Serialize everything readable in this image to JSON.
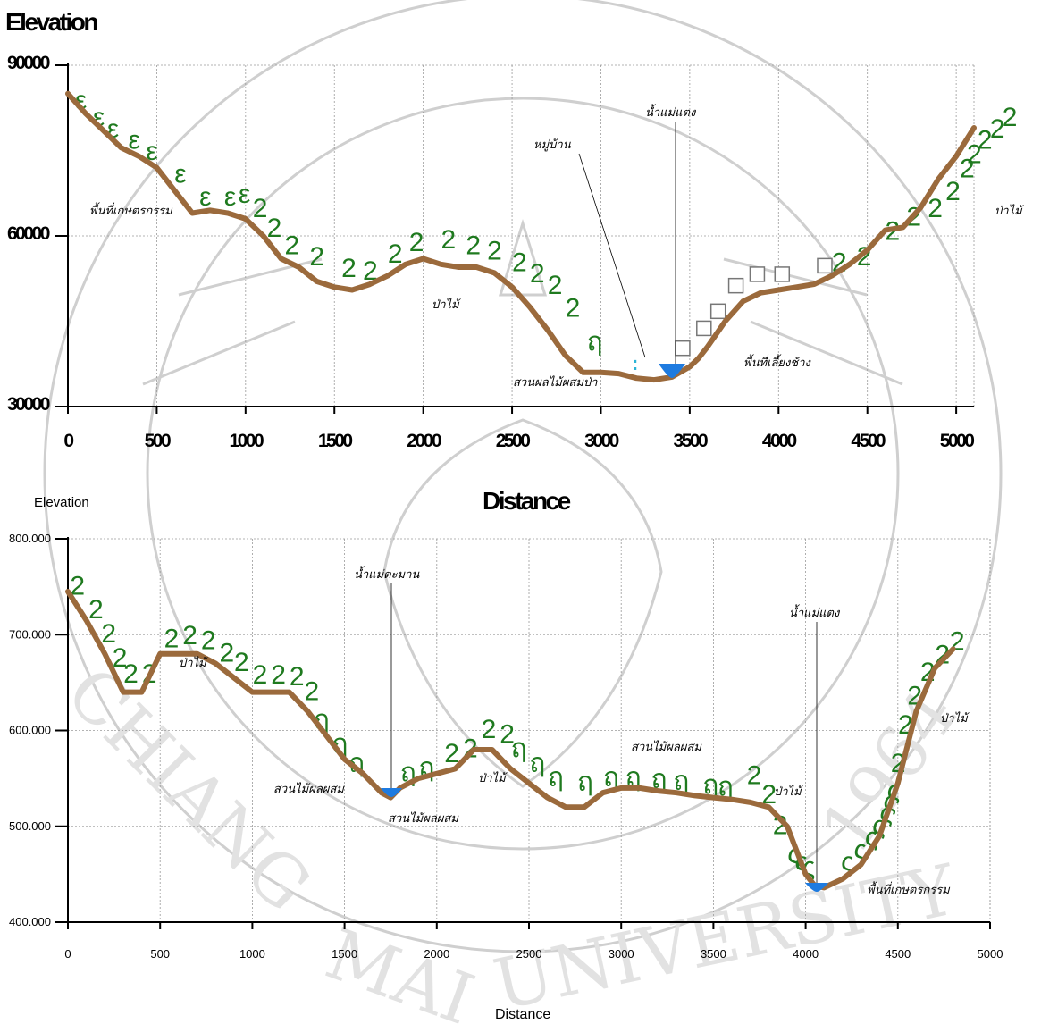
{
  "chart_data": [
    {
      "type": "line",
      "title": "Elevation",
      "xlabel": "",
      "ylabel": "",
      "xlim": [
        0,
        5100
      ],
      "ylim": [
        30000,
        90000
      ],
      "x_ticks": [
        "0",
        "500",
        "1000",
        "1500",
        "2000",
        "2500",
        "3000",
        "3500",
        "4000",
        "4500",
        "5000"
      ],
      "y_ticks": [
        "30000",
        "60000",
        "90000"
      ],
      "grid": true,
      "series": [
        {
          "x": [
            0,
            100,
            200,
            300,
            400,
            500,
            600,
            700,
            800,
            900,
            1000,
            1100,
            1200,
            1300,
            1400,
            1500,
            1600,
            1700,
            1800,
            1900,
            2000,
            2100,
            2200,
            2300,
            2400,
            2500,
            2600,
            2700,
            2800,
            2900,
            3000,
            3100,
            3200,
            3300,
            3400,
            3500,
            3550,
            3600,
            3700,
            3800,
            3900,
            4000,
            4100,
            4200,
            4300,
            4400,
            4500,
            4600,
            4700,
            4800,
            4900,
            5000,
            5100
          ],
          "y": [
            85000,
            81500,
            78500,
            75500,
            74000,
            72000,
            68000,
            64000,
            64500,
            64000,
            63000,
            60000,
            56000,
            54500,
            52000,
            51000,
            50500,
            51500,
            53000,
            55000,
            56000,
            55000,
            54500,
            54500,
            53500,
            51000,
            47500,
            43500,
            39000,
            36000,
            36000,
            35800,
            35000,
            34700,
            35200,
            37000,
            38500,
            40500,
            45000,
            48500,
            50000,
            50500,
            51000,
            51500,
            53000,
            55000,
            57500,
            61000,
            61500,
            65000,
            70000,
            74000,
            79000
          ]
        }
      ],
      "annotations": [
        "พื้นที่เกษตรกรรม",
        "ป่าไม้",
        "สวนผลไม้ผสมป่า",
        "หมู่บ้าน",
        "น้ำแม่แตง",
        "พื้นที่เลี้ยงช้าง",
        "ป่าไม้"
      ]
    },
    {
      "type": "line",
      "title": "Distance",
      "xlabel": "Distance",
      "ylabel": "Elevation",
      "xlim": [
        0,
        5000
      ],
      "ylim": [
        400,
        800
      ],
      "x_ticks": [
        "0",
        "500",
        "1000",
        "1500",
        "2000",
        "2500",
        "3000",
        "3500",
        "4000",
        "4500",
        "5000"
      ],
      "y_ticks": [
        "400.000",
        "500.000",
        "600.000",
        "700.000",
        "800.000"
      ],
      "grid": true,
      "series": [
        {
          "x": [
            0,
            100,
            200,
            300,
            400,
            500,
            600,
            700,
            800,
            900,
            1000,
            1100,
            1200,
            1300,
            1400,
            1500,
            1600,
            1700,
            1750,
            1800,
            1900,
            2000,
            2100,
            2200,
            2300,
            2400,
            2500,
            2600,
            2700,
            2800,
            2900,
            3000,
            3100,
            3200,
            3300,
            3400,
            3500,
            3600,
            3700,
            3800,
            3900,
            4000,
            4050,
            4100,
            4200,
            4300,
            4400,
            4500,
            4600,
            4700,
            4800
          ],
          "y": [
            745,
            715,
            680,
            640,
            640,
            680,
            680,
            680,
            670,
            655,
            640,
            640,
            640,
            620,
            595,
            570,
            555,
            535,
            530,
            540,
            550,
            555,
            560,
            580,
            580,
            560,
            545,
            530,
            520,
            520,
            535,
            540,
            540,
            537,
            535,
            532,
            530,
            528,
            525,
            520,
            500,
            450,
            438,
            436,
            445,
            460,
            490,
            545,
            620,
            665,
            685
          ]
        }
      ],
      "annotations": [
        "ป่าไม้",
        "น้ำแม่ตะมาน",
        "สวนไม้ผลผสม",
        "สวนไม้ผลผสม",
        "ป่าไม้",
        "สวนไม้ผลผสม",
        "ป่าไม้",
        "น้ำแม่แตง",
        "พื้นที่เกษตรกรรม",
        "ป่าไม้"
      ]
    }
  ],
  "colors": {
    "profile": "#9b6a3c",
    "vegetation_symbols": "#1f7a1f",
    "water": "#1e7be0"
  },
  "watermark_text": "CHIANG MAI UNIVERSITY 1964"
}
